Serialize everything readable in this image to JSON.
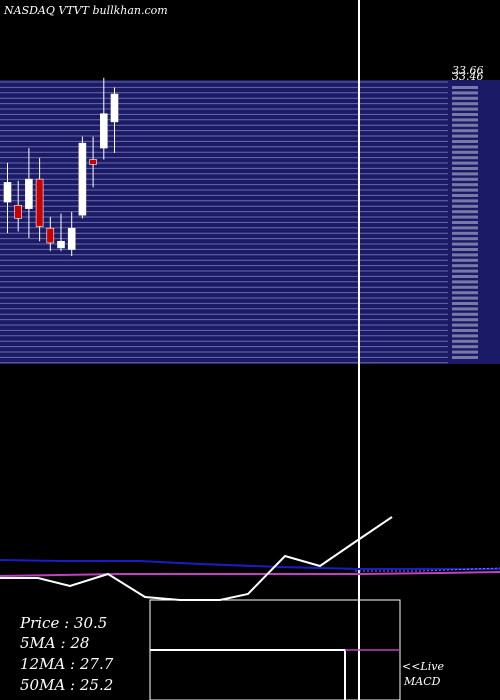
{
  "header": {
    "title": "NASDAQ VTVT bullkhan.com"
  },
  "colors": {
    "background": "#000000",
    "band": "#1a1a66",
    "bandLine": "#6a6aa8",
    "up": "#ffffff",
    "down": "#c80000",
    "wick": "#ffffff",
    "separator": "#ffffff",
    "maBlue": "#1b1bc8",
    "maMagenta": "#c040c0",
    "macd": "#ffffff",
    "signal": "#c040c0"
  },
  "chart_data": {
    "type": "candlestick",
    "title": "NASDAQ VTVT bullkhan.com",
    "price_axis": {
      "min": 16.3,
      "max": 33.66,
      "visible_top_labels": [
        "33.66",
        "33.46"
      ]
    },
    "candles": [
      {
        "open": 26.2,
        "high": 28.6,
        "low": 24.3,
        "close": 27.4,
        "dir": "up"
      },
      {
        "open": 26.0,
        "high": 27.5,
        "low": 24.4,
        "close": 25.2,
        "dir": "down"
      },
      {
        "open": 25.8,
        "high": 29.5,
        "low": 24.0,
        "close": 27.6,
        "dir": "up"
      },
      {
        "open": 27.6,
        "high": 28.9,
        "low": 23.8,
        "close": 24.7,
        "dir": "down"
      },
      {
        "open": 24.6,
        "high": 25.3,
        "low": 23.2,
        "close": 23.7,
        "dir": "down"
      },
      {
        "open": 23.4,
        "high": 25.5,
        "low": 23.2,
        "close": 23.8,
        "dir": "up"
      },
      {
        "open": 23.3,
        "high": 25.6,
        "low": 22.9,
        "close": 24.6,
        "dir": "up"
      },
      {
        "open": 25.4,
        "high": 30.2,
        "low": 25.2,
        "close": 29.8,
        "dir": "up"
      },
      {
        "open": 28.8,
        "high": 30.2,
        "low": 27.1,
        "close": 28.5,
        "dir": "down"
      },
      {
        "open": 29.5,
        "high": 33.8,
        "low": 28.8,
        "close": 31.6,
        "dir": "up"
      },
      {
        "open": 31.1,
        "high": 33.2,
        "low": 29.2,
        "close": 32.8,
        "dir": "up"
      }
    ],
    "moving_averages": [
      {
        "label": "5MA",
        "value": 28
      },
      {
        "label": "12MA",
        "value": 27.7
      },
      {
        "label": "50MA",
        "value": 25.2
      }
    ],
    "indicators": {
      "price_label": "Price",
      "price": 30.5,
      "ma_lines": [
        {
          "label": "5MA",
          "text": "5MA : 28"
        },
        {
          "label": "12MA",
          "text": "12MA : 27.7"
        },
        {
          "label": "50MA",
          "text": "50MA : 25.2"
        }
      ],
      "price_text": "Price   : 30.5"
    },
    "macd_label_line1": "<<Live",
    "macd_label_line2": "MACD"
  }
}
